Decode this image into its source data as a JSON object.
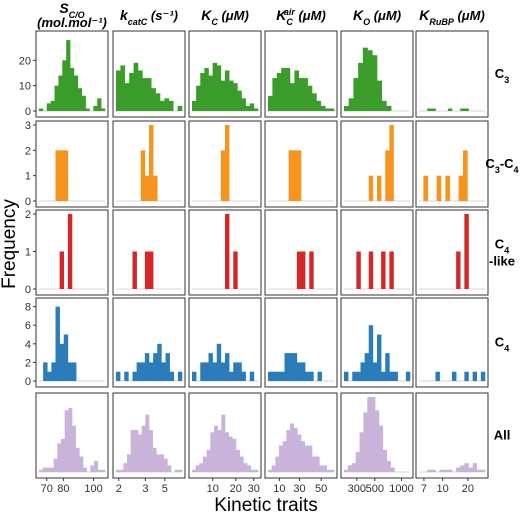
{
  "chart_data": {
    "type": "bar",
    "xlabel": "Kinetic traits",
    "ylabel": "Frequency",
    "columns": [
      {
        "title_main": "S",
        "title_sub": "C/O",
        "title_line2": "(mol.mol⁻¹)",
        "xticks": [
          "70",
          "80",
          "100"
        ]
      },
      {
        "title_main": "k",
        "title_sub": "catC",
        "title_rest": " (s⁻¹)",
        "xticks": [
          "2",
          "3",
          "5"
        ]
      },
      {
        "title_main": "K",
        "title_sub": "C",
        "title_rest": " (μM)",
        "xticks": [
          "10",
          "20",
          "30"
        ]
      },
      {
        "title_main": "K",
        "title_sub": "C",
        "title_sup": "air",
        "title_rest": " (μM)",
        "xticks": [
          "10",
          "30",
          "50"
        ]
      },
      {
        "title_main": "K",
        "title_sub": "O",
        "title_rest": " (μM)",
        "xticks": [
          "300",
          "500",
          "1000"
        ]
      },
      {
        "title_main": "K",
        "title_sub": "RuBP",
        "title_rest": " (μM)",
        "xticks": [
          "7",
          "10",
          "20"
        ]
      }
    ],
    "rows": [
      {
        "name": "C3",
        "label_parts": [
          [
            "C",
            ""
          ],
          [
            "3",
            "sub"
          ]
        ],
        "color": "#3a9d2a",
        "ymax": 30,
        "yticks": [
          "0",
          "10",
          "20"
        ],
        "panels": [
          [
            1,
            0,
            3,
            4,
            10,
            14,
            20,
            28,
            17,
            14,
            9,
            6,
            1,
            0,
            2,
            5,
            1
          ],
          [
            16,
            18,
            11,
            15,
            19,
            16,
            13,
            13,
            9,
            7,
            4,
            5,
            4,
            0,
            2
          ],
          [
            4,
            10,
            15,
            17,
            14,
            19,
            18,
            12,
            16,
            12,
            11,
            8,
            5,
            2,
            3,
            1
          ],
          [
            6,
            13,
            15,
            17,
            17,
            11,
            16,
            13,
            13,
            10,
            7,
            4,
            2,
            1,
            1
          ],
          [
            2,
            5,
            13,
            19,
            25,
            24,
            22,
            12,
            4,
            2,
            0,
            0,
            0,
            0
          ],
          [
            0,
            0,
            1,
            1,
            0,
            0,
            0,
            1,
            0,
            0,
            1,
            1,
            0,
            0,
            0,
            0
          ]
        ]
      },
      {
        "name": "C3-C4",
        "label_parts": [
          [
            "C",
            ""
          ],
          [
            "3",
            "sub"
          ],
          [
            "-C",
            ""
          ],
          [
            "4",
            "sub"
          ]
        ],
        "color": "#f7941d",
        "ymax": 3,
        "yticks": [
          "0",
          "1",
          "2",
          "3"
        ],
        "panels": [
          [
            0,
            0,
            0,
            0,
            2,
            2,
            2,
            0,
            0,
            0,
            0,
            0,
            0,
            0,
            0,
            0
          ],
          [
            0,
            0,
            0,
            0,
            0,
            0,
            2,
            1,
            3,
            1,
            0,
            0,
            0,
            0,
            0,
            0
          ],
          [
            0,
            0,
            0,
            0,
            0,
            0,
            0,
            2,
            3,
            0,
            0,
            0,
            0,
            0,
            0,
            0
          ],
          [
            0,
            0,
            0,
            0,
            0,
            2,
            2,
            2,
            0,
            0,
            0,
            0,
            0,
            0,
            0,
            0
          ],
          [
            0,
            0,
            0,
            0,
            0,
            0,
            1,
            0,
            1,
            0,
            2,
            3,
            0,
            0,
            0,
            0
          ],
          [
            0,
            1,
            0,
            0,
            1,
            0,
            1,
            0,
            0,
            1,
            2,
            0,
            0,
            0,
            0
          ]
        ]
      },
      {
        "name": "C4-like",
        "label_parts": [
          [
            "C",
            ""
          ],
          [
            "4",
            "sub"
          ],
          [
            "|",
            ""
          ],
          [
            "-like",
            ""
          ]
        ],
        "color": "#d62728",
        "ymax": 2,
        "yticks": [
          "0",
          "1",
          "2"
        ],
        "panels": [
          [
            0,
            0,
            0,
            0,
            0,
            1,
            0,
            2,
            0,
            0,
            0,
            0,
            0,
            0,
            0,
            0
          ],
          [
            0,
            0,
            0,
            0,
            1,
            0,
            0,
            1,
            1,
            0,
            0,
            0,
            0,
            0,
            0,
            0
          ],
          [
            0,
            0,
            0,
            0,
            0,
            0,
            0,
            0,
            2,
            0,
            1,
            0,
            0,
            0,
            0,
            0
          ],
          [
            0,
            0,
            0,
            0,
            0,
            0,
            0,
            1,
            1,
            0,
            1,
            0,
            0,
            0,
            0,
            0
          ],
          [
            0,
            0,
            0,
            1,
            0,
            0,
            1,
            0,
            0,
            1,
            0,
            1,
            0,
            0,
            0,
            0
          ],
          [
            0,
            0,
            0,
            0,
            0,
            0,
            0,
            0,
            0,
            1,
            0,
            2,
            0,
            0,
            0,
            0
          ]
        ]
      },
      {
        "name": "C4",
        "label_parts": [
          [
            "C",
            ""
          ],
          [
            "4",
            "sub"
          ]
        ],
        "color": "#2b7cba",
        "ymax": 8.5,
        "yticks": [
          "0",
          "2",
          "4",
          "6",
          "8"
        ],
        "panels": [
          [
            0,
            2,
            1,
            2,
            8,
            4,
            5,
            2,
            2,
            0,
            0,
            0,
            0,
            0,
            0,
            0
          ],
          [
            1,
            0,
            1,
            0,
            1,
            2,
            2,
            3,
            2,
            3,
            4,
            2,
            3,
            1,
            0,
            1
          ],
          [
            1,
            0,
            2,
            2,
            3,
            2,
            4,
            2,
            3,
            1,
            2,
            2,
            1,
            0,
            1,
            0
          ],
          [
            1,
            1,
            1,
            1,
            3,
            3,
            3,
            2,
            2,
            1,
            1,
            0,
            1,
            0,
            0,
            0
          ],
          [
            1,
            0,
            1,
            1,
            2,
            3,
            6,
            2,
            5,
            1,
            3,
            1,
            1,
            0,
            0,
            1
          ],
          [
            0,
            0,
            0,
            0,
            1,
            0,
            0,
            0,
            1,
            0,
            0,
            1,
            0,
            1,
            0,
            1
          ]
        ]
      },
      {
        "name": "All",
        "label_parts": [
          [
            "All",
            ""
          ]
        ],
        "color": "#c9b3db",
        "ymax": 34,
        "yticks": [],
        "panels": [
          [
            1,
            2,
            2,
            2,
            6,
            13,
            15,
            28,
            29,
            21,
            11,
            7,
            2,
            0,
            3,
            5,
            1,
            1
          ],
          [
            1,
            1,
            4,
            8,
            19,
            19,
            17,
            21,
            26,
            19,
            11,
            8,
            8,
            6,
            3,
            0,
            1,
            1
          ],
          [
            1,
            3,
            4,
            7,
            10,
            18,
            21,
            19,
            26,
            18,
            16,
            15,
            10,
            7,
            4,
            3,
            1,
            1
          ],
          [
            1,
            3,
            7,
            12,
            14,
            19,
            22,
            20,
            17,
            14,
            12,
            12,
            7,
            7,
            3,
            3,
            1,
            1
          ],
          [
            1,
            3,
            4,
            9,
            18,
            27,
            45,
            40,
            28,
            21,
            10,
            5,
            2,
            0,
            0,
            0,
            0
          ],
          [
            0,
            0,
            1,
            1,
            0,
            1,
            1,
            1,
            0,
            2,
            3,
            4,
            2,
            4,
            1,
            1
          ]
        ]
      }
    ]
  }
}
